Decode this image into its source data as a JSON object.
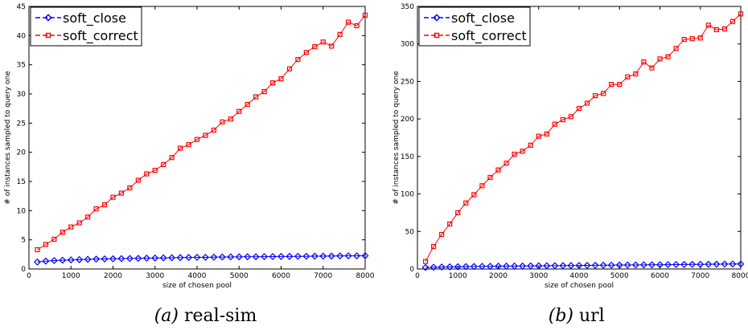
{
  "chart_data": [
    {
      "type": "line",
      "caption_letter": "(a)",
      "caption_text": "real-sim",
      "xlabel": "size of chosen pool",
      "ylabel": "# of instances sampled to query one",
      "xlim": [
        0,
        8000
      ],
      "ylim": [
        0,
        45
      ],
      "xticks": [
        0,
        1000,
        2000,
        3000,
        4000,
        5000,
        6000,
        7000,
        8000
      ],
      "yticks": [
        0,
        5,
        10,
        15,
        20,
        25,
        30,
        35,
        40,
        45
      ],
      "legend_position": "top-left",
      "grid": false,
      "x": [
        200,
        400,
        600,
        800,
        1000,
        1200,
        1400,
        1600,
        1800,
        2000,
        2200,
        2400,
        2600,
        2800,
        3000,
        3200,
        3400,
        3600,
        3800,
        4000,
        4200,
        4400,
        4600,
        4800,
        5000,
        5200,
        5400,
        5600,
        5800,
        6000,
        6200,
        6400,
        6600,
        6800,
        7000,
        7200,
        7400,
        7600,
        7800,
        8000
      ],
      "series": [
        {
          "name": "soft_close",
          "color": "#0000ff",
          "marker": "diamond",
          "values": [
            1.2,
            1.35,
            1.45,
            1.5,
            1.55,
            1.6,
            1.65,
            1.7,
            1.72,
            1.75,
            1.78,
            1.8,
            1.82,
            1.85,
            1.88,
            1.9,
            1.92,
            1.95,
            1.97,
            2.0,
            2.0,
            2.02,
            2.05,
            2.07,
            2.08,
            2.1,
            2.1,
            2.12,
            2.13,
            2.15,
            2.15,
            2.17,
            2.18,
            2.2,
            2.2,
            2.22,
            2.23,
            2.25,
            2.25,
            2.27
          ]
        },
        {
          "name": "soft_correct",
          "color": "#ff0000",
          "marker": "square",
          "values": [
            3.3,
            4.2,
            5.1,
            6.3,
            7.2,
            7.9,
            8.9,
            10.3,
            11.0,
            12.3,
            13.0,
            13.9,
            15.2,
            16.3,
            16.9,
            17.9,
            19.1,
            20.7,
            21.3,
            22.2,
            22.9,
            23.8,
            25.2,
            25.7,
            27.0,
            28.2,
            29.5,
            30.4,
            31.9,
            32.6,
            34.3,
            35.9,
            37.1,
            38.1,
            38.9,
            38.2,
            40.2,
            42.3,
            41.7,
            43.5
          ]
        }
      ]
    },
    {
      "type": "line",
      "caption_letter": "(b)",
      "caption_text": "url",
      "xlabel": "size of chosen pool",
      "ylabel": "# of instances sampled to query one",
      "xlim": [
        0,
        8000
      ],
      "ylim": [
        0,
        350
      ],
      "xticks": [
        0,
        1000,
        2000,
        3000,
        4000,
        5000,
        6000,
        7000,
        8000
      ],
      "yticks": [
        0,
        50,
        100,
        150,
        200,
        250,
        300,
        350
      ],
      "legend_position": "top-left",
      "grid": false,
      "x": [
        200,
        400,
        600,
        800,
        1000,
        1200,
        1400,
        1600,
        1800,
        2000,
        2200,
        2400,
        2600,
        2800,
        3000,
        3200,
        3400,
        3600,
        3800,
        4000,
        4200,
        4400,
        4600,
        4800,
        5000,
        5200,
        5400,
        5600,
        5800,
        6000,
        6200,
        6400,
        6600,
        6800,
        7000,
        7200,
        7400,
        7600,
        7800,
        8000
      ],
      "series": [
        {
          "name": "soft_close",
          "color": "#0000ff",
          "marker": "diamond",
          "values": [
            2,
            2.3,
            2.6,
            2.8,
            3,
            3.2,
            3.3,
            3.5,
            3.6,
            3.7,
            3.8,
            3.9,
            4,
            4.1,
            4.2,
            4.3,
            4.4,
            4.5,
            4.6,
            4.7,
            4.8,
            4.9,
            5,
            5.1,
            5.2,
            5.3,
            5.4,
            5.5,
            5.6,
            5.7,
            5.8,
            5.9,
            6,
            6.1,
            6.2,
            6.3,
            6.4,
            6.5,
            6.6,
            6.7
          ]
        },
        {
          "name": "soft_correct",
          "color": "#ff0000",
          "marker": "square",
          "values": [
            10,
            30,
            46,
            60,
            75,
            88,
            99,
            111,
            122,
            132,
            141,
            153,
            157,
            165,
            177,
            180,
            193,
            199,
            203,
            214,
            221,
            231,
            234,
            246,
            246,
            256,
            260,
            276,
            268,
            280,
            283,
            294,
            306,
            307,
            308,
            325,
            319,
            320,
            330,
            340
          ]
        }
      ]
    }
  ]
}
